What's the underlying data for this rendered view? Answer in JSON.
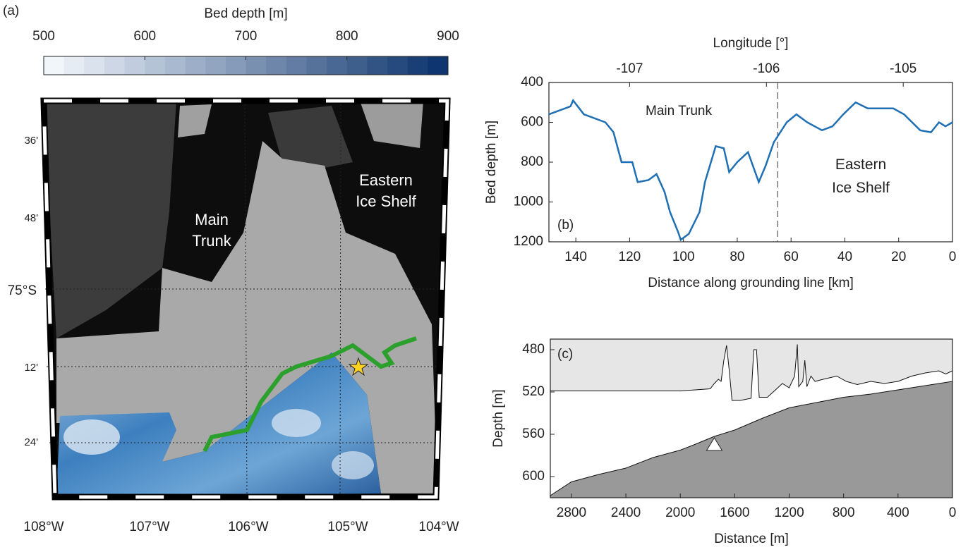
{
  "chart_data": [
    {
      "type": "map",
      "panel_label": "(a)",
      "colorbar": {
        "label": "Bed depth [m]",
        "lim": [
          500,
          900
        ],
        "ticks": [
          500,
          600,
          700,
          800,
          900
        ]
      },
      "lon_labels": [
        "108°W",
        "107°W",
        "106°W",
        "105°W",
        "104°W"
      ],
      "lat_labels": [
        "36'",
        "48'",
        "75°S",
        "12'",
        "24'"
      ],
      "annotations": [
        [
          "Main",
          "Trunk"
        ],
        [
          "Eastern",
          "Ice Shelf"
        ]
      ]
    },
    {
      "type": "line",
      "panel_label": "(b)",
      "xlabel": "Distance along grounding line [km]",
      "ylabel": "Bed depth [m]",
      "x2label": "Longitude [°]",
      "xlim": [
        150,
        0
      ],
      "ylim": [
        1200,
        400
      ],
      "x2lim": [
        -107.59,
        -104.64
      ],
      "xticks": [
        140,
        120,
        100,
        80,
        60,
        40,
        20,
        0
      ],
      "yticks": [
        400,
        600,
        800,
        1000,
        1200
      ],
      "x2ticks": [
        -107,
        -106,
        -105
      ],
      "vline": 65,
      "annotations": [
        [
          "Main Trunk"
        ],
        [
          "Eastern",
          "Ice Shelf"
        ]
      ],
      "series": [
        {
          "color": "#1f6fb4",
          "x": [
            150,
            142,
            141,
            137,
            129,
            126,
            123,
            119,
            117,
            113,
            110,
            107,
            105,
            102,
            101,
            98,
            94,
            92,
            88,
            85,
            83,
            80,
            76,
            72,
            69.5,
            66.4,
            61.6,
            58,
            54,
            48.5,
            44.6,
            40.6,
            36,
            31.5,
            22,
            18,
            12,
            8,
            5,
            2.6,
            0
          ],
          "values": [
            560,
            520,
            490,
            560,
            600,
            650,
            800,
            800,
            900,
            890,
            860,
            950,
            1050,
            1150,
            1190,
            1160,
            1050,
            900,
            720,
            730,
            850,
            800,
            750,
            900,
            820,
            700,
            600,
            560,
            600,
            640,
            620,
            560,
            500,
            530,
            530,
            560,
            640,
            650,
            600,
            620,
            600
          ]
        }
      ]
    },
    {
      "type": "area",
      "panel_label": "(c)",
      "xlabel": "Distance [m]",
      "ylabel": "Depth [m]",
      "xlim": [
        2955,
        0
      ],
      "ylim": [
        620,
        470
      ],
      "xticks": [
        2800,
        2400,
        2000,
        1600,
        1200,
        800,
        400,
        0
      ],
      "yticks": [
        480,
        520,
        560,
        600
      ],
      "series": [
        {
          "color": "#e6e6e6",
          "fill": "up",
          "x": [
            2955,
            2000,
            1780,
            1750,
            1720,
            1700,
            1680,
            1660,
            1640,
            1620,
            1560,
            1480,
            1460,
            1440,
            1420,
            1360,
            1300,
            1250,
            1200,
            1160,
            1140,
            1130,
            1100,
            1085,
            1070,
            1040,
            1010,
            950,
            850,
            780,
            700,
            600,
            500,
            400,
            300,
            200,
            100,
            50,
            0
          ],
          "values": [
            519,
            519,
            517,
            512,
            508,
            510,
            490,
            476,
            500,
            528,
            528,
            526,
            480,
            480,
            525,
            525,
            518,
            512,
            516,
            505,
            475,
            515,
            510,
            490,
            515,
            505,
            510,
            508,
            505,
            510,
            513,
            510,
            512,
            510,
            505,
            502,
            500,
            503,
            500
          ]
        },
        {
          "color": "#999999",
          "fill": "down",
          "x": [
            2955,
            2800,
            2600,
            2400,
            2200,
            2000,
            1900,
            1750,
            1600,
            1400,
            1200,
            1000,
            800,
            600,
            400,
            200,
            0
          ],
          "values": [
            618,
            605,
            598,
            592,
            582,
            575,
            570,
            562,
            556,
            545,
            535,
            530,
            525,
            522,
            518,
            514,
            510
          ]
        }
      ],
      "marker": {
        "x": 1750,
        "y": 570
      }
    }
  ]
}
